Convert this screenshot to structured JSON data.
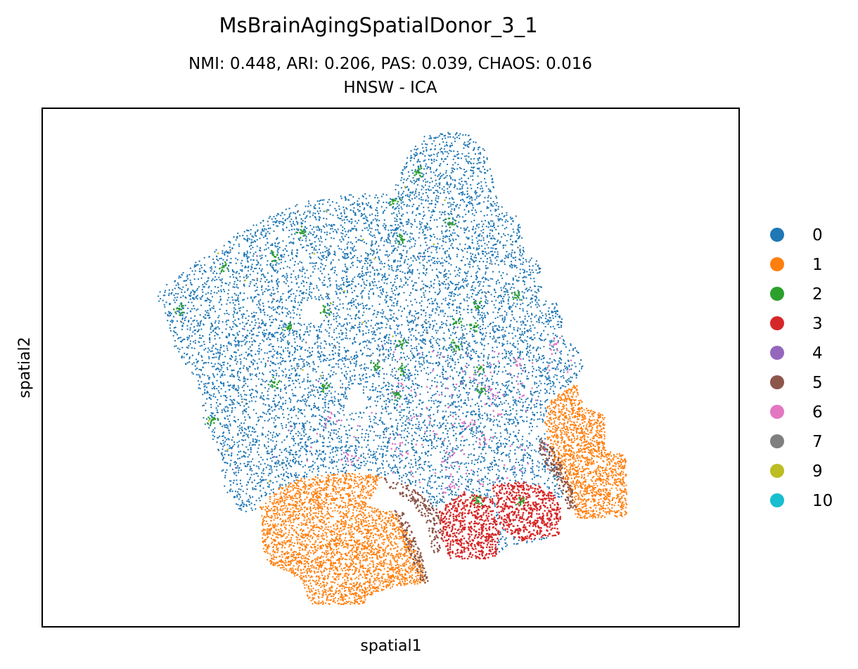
{
  "chart_data": {
    "type": "scatter",
    "title": "MsBrainAgingSpatialDonor_3_1",
    "subtitle_line1": "NMI: 0.448,  ARI: 0.206,  PAS: 0.039,  CHAOS: 0.016",
    "subtitle_line2": "HNSW - ICA",
    "xlabel": "spatial1",
    "ylabel": "spatial2",
    "xticks": [],
    "yticks": [],
    "grid": false,
    "legend_position": "right",
    "series": [
      {
        "name": "0",
        "color": "#1f77b4"
      },
      {
        "name": "1",
        "color": "#ff7f0e"
      },
      {
        "name": "2",
        "color": "#2ca02c"
      },
      {
        "name": "3",
        "color": "#d62728"
      },
      {
        "name": "4",
        "color": "#9467bd"
      },
      {
        "name": "5",
        "color": "#8c564b"
      },
      {
        "name": "6",
        "color": "#e377c2"
      },
      {
        "name": "7",
        "color": "#7f7f7f"
      },
      {
        "name": "9",
        "color": "#bcbd22"
      },
      {
        "name": "10",
        "color": "#17becf"
      }
    ]
  }
}
